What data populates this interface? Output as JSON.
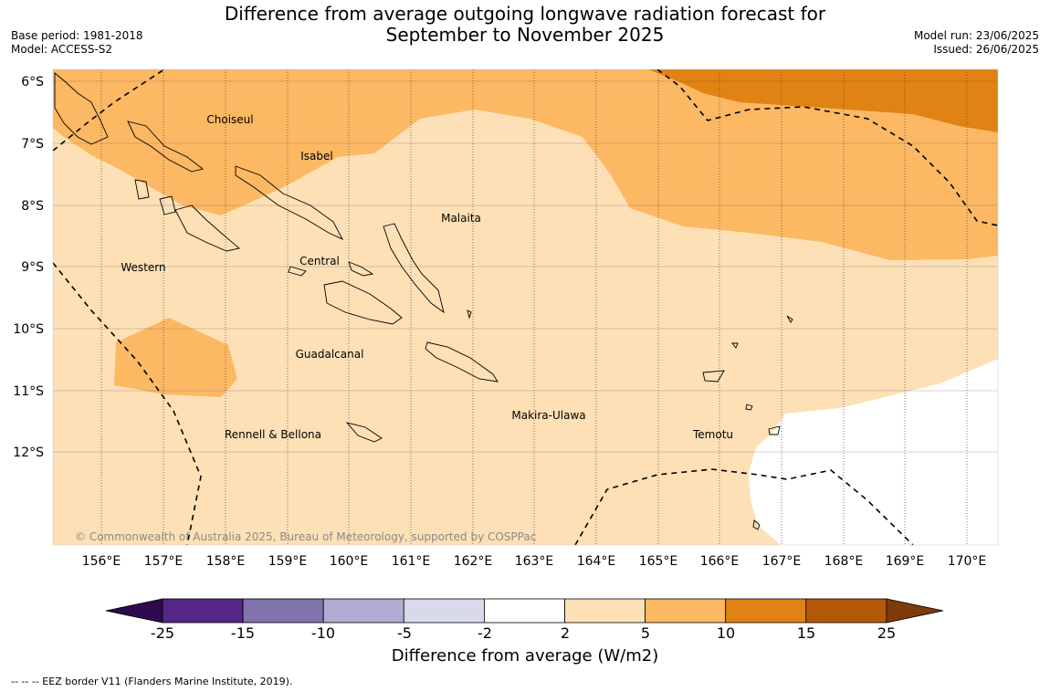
{
  "title_line1": "Difference from average outgoing longwave radiation forecast for",
  "title_line2": "September to November 2025",
  "meta_left": [
    "Base period: 1981-2018",
    "Model: ACCESS-S2"
  ],
  "meta_right": [
    "Model run: 23/06/2025",
    "Issued: 26/06/2025"
  ],
  "copyright": "© Commonwealth of Australia 2025, Bureau of Meteorology, supported by COSPPac",
  "lat_ticks": [
    "6°S",
    "7°S",
    "8°S",
    "9°S",
    "10°S",
    "11°S",
    "12°S"
  ],
  "lon_ticks": [
    "156°E",
    "157°E",
    "158°E",
    "159°E",
    "160°E",
    "161°E",
    "162°E",
    "163°E",
    "164°E",
    "165°E",
    "166°E",
    "167°E",
    "168°E",
    "169°E",
    "170°E"
  ],
  "region_labels": [
    "Choiseul",
    "Isabel",
    "Malaita",
    "Western",
    "Central",
    "Guadalcanal",
    "Rennell & Bellona",
    "Makira-Ulawa",
    "Temotu"
  ],
  "colorbar": {
    "ticks": [
      "-25",
      "-15",
      "-10",
      "-5",
      "-2",
      "2",
      "5",
      "10",
      "15",
      "25"
    ],
    "colors": [
      "#2d0a4e",
      "#542788",
      "#8073ac",
      "#b2abd2",
      "#d8daeb",
      "#ffffff",
      "#fee0b6",
      "#fdb863",
      "#e08214",
      "#b35806",
      "#7f3b08"
    ],
    "title": "Difference from average (W/m2)"
  },
  "legend_note": "--  --  -- EEZ border V11 (Flanders Marine Institute, 2019)."
}
